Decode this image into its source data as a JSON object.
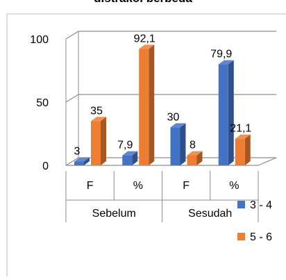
{
  "chart_data": {
    "type": "bar",
    "title": "distrakol berbeda",
    "categories": [
      "F",
      "%",
      "F",
      "%"
    ],
    "groups": [
      "Sebelum",
      "Sesudah"
    ],
    "series": [
      {
        "name": "3 - 4",
        "values": [
          3,
          7.9,
          30,
          79.9
        ],
        "labels": [
          "3",
          "7,9",
          "30",
          "79,9"
        ],
        "color": "#4472C4"
      },
      {
        "name": "5 - 6",
        "values": [
          35,
          92.1,
          8,
          21.1
        ],
        "labels": [
          "35",
          "92,1",
          "8",
          "21,1"
        ],
        "color": "#ED7D31"
      }
    ],
    "ylim": [
      0,
      100
    ],
    "yticks": [
      0,
      50,
      100
    ],
    "grid": true,
    "legend_position": "right"
  }
}
